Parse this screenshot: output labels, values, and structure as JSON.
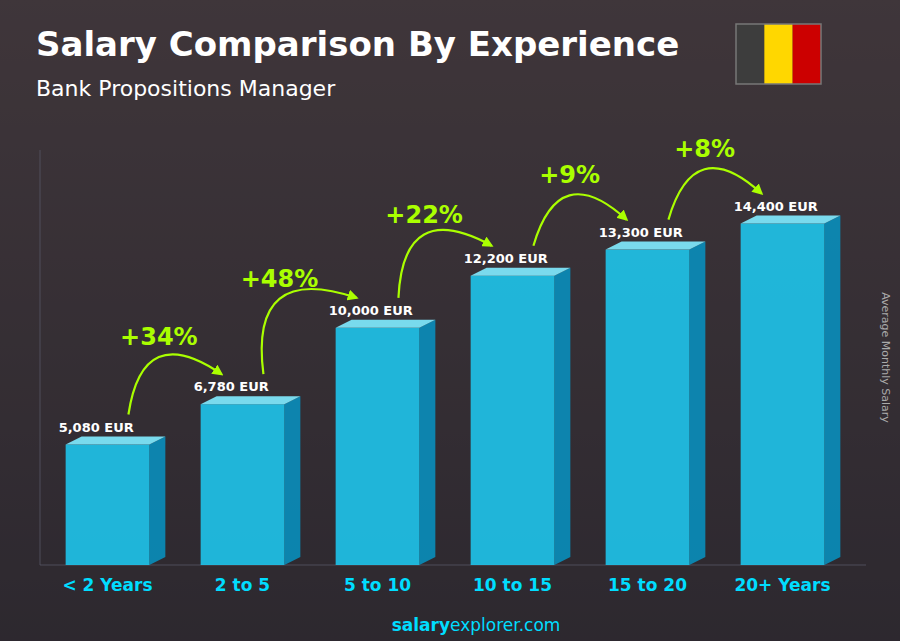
{
  "chart_data": {
    "type": "bar",
    "title": "Salary Comparison By Experience",
    "subtitle": "Bank Propositions Manager",
    "ylabel": "Average Monthly Salary",
    "footer": [
      "salary",
      "explorer.com"
    ],
    "categories": [
      "< 2 Years",
      "2 to 5",
      "5 to 10",
      "10 to 15",
      "15 to 20",
      "20+ Years"
    ],
    "values": [
      5080,
      6780,
      10000,
      12200,
      13300,
      14400
    ],
    "value_labels": [
      "5,080 EUR",
      "6,780 EUR",
      "10,000 EUR",
      "12,200 EUR",
      "13,300 EUR",
      "14,400 EUR"
    ],
    "data_labels": true,
    "annotations": [
      "+34%",
      "+48%",
      "+22%",
      "+9%",
      "+8%"
    ],
    "color": "#1EC8F0",
    "ylim": [
      0,
      17500
    ],
    "grid": false,
    "tick_labels": "x"
  }
}
